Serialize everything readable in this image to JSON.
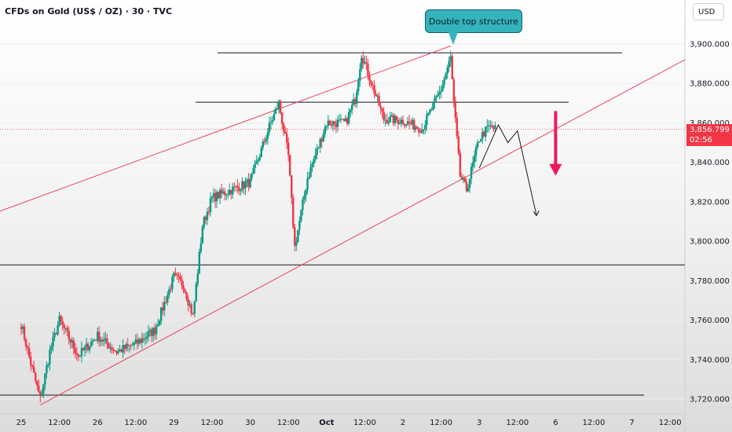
{
  "header": {
    "title": "CFDs on Gold (US$ / OZ) · 30 · TVC",
    "currency": "USD"
  },
  "annotation": {
    "callout_text": "Double top structure"
  },
  "price_label": {
    "value": "3,856.799",
    "countdown": "02:56",
    "color": "#f23645"
  },
  "colors": {
    "up": "#089981",
    "down": "#f23645",
    "channel": "#e8445a",
    "callout": "#35b3bd"
  },
  "chart_data": {
    "type": "candlestick",
    "title": "CFDs on Gold (US$ / OZ) · 30 · TVC",
    "y_axis": {
      "ticks": [
        3720,
        3740,
        3760,
        3780,
        3800,
        3820,
        3840,
        3860,
        3880,
        3900
      ],
      "tick_labels": [
        "3,720.000",
        "3,740.000",
        "3,760.000",
        "3,780.000",
        "3,800.000",
        "3,820.000",
        "3,840.000",
        "3,860.000",
        "3,880.000",
        "3,900.000"
      ],
      "range": [
        3713,
        3918
      ]
    },
    "x_axis": {
      "tick_labels": [
        "25",
        "12:00",
        "26",
        "12:00",
        "29",
        "12:00",
        "30",
        "12:00",
        "Oct",
        "12:00",
        "2",
        "12:00",
        "3",
        "12:00",
        "6",
        "12:00",
        "7",
        "12:00"
      ],
      "bold_labels": [
        "Oct"
      ]
    },
    "current_price": 3856.799,
    "path_anchors": [
      {
        "t": "25 00:00",
        "price": 3758
      },
      {
        "t": "25 03:00",
        "price": 3738
      },
      {
        "t": "25 06:00",
        "price": 3720
      },
      {
        "t": "25 09:00",
        "price": 3744
      },
      {
        "t": "25 12:00",
        "price": 3760
      },
      {
        "t": "25 18:00",
        "price": 3742
      },
      {
        "t": "26 00:00",
        "price": 3752
      },
      {
        "t": "26 06:00",
        "price": 3744
      },
      {
        "t": "26 12:00",
        "price": 3748
      },
      {
        "t": "26 18:00",
        "price": 3755
      },
      {
        "t": "29 00:00",
        "price": 3782
      },
      {
        "t": "29 03:00",
        "price": 3778
      },
      {
        "t": "29 06:00",
        "price": 3762
      },
      {
        "t": "29 09:00",
        "price": 3808
      },
      {
        "t": "29 12:00",
        "price": 3822
      },
      {
        "t": "29 18:00",
        "price": 3826
      },
      {
        "t": "30 00:00",
        "price": 3830
      },
      {
        "t": "30 06:00",
        "price": 3858
      },
      {
        "t": "30 09:00",
        "price": 3870
      },
      {
        "t": "30 12:00",
        "price": 3843
      },
      {
        "t": "30 14:00",
        "price": 3797
      },
      {
        "t": "30 18:00",
        "price": 3832
      },
      {
        "t": "Oct 00:00",
        "price": 3860
      },
      {
        "t": "Oct 06:00",
        "price": 3860
      },
      {
        "t": "Oct 09:00",
        "price": 3872
      },
      {
        "t": "Oct 11:00",
        "price": 3895
      },
      {
        "t": "Oct 15:00",
        "price": 3876
      },
      {
        "t": "Oct 18:00",
        "price": 3862
      },
      {
        "t": "2 00:00",
        "price": 3861
      },
      {
        "t": "2 06:00",
        "price": 3857
      },
      {
        "t": "2 09:00",
        "price": 3867
      },
      {
        "t": "2 12:00",
        "price": 3877
      },
      {
        "t": "2 15:00",
        "price": 3893
      },
      {
        "t": "2 16:00",
        "price": 3870
      },
      {
        "t": "2 18:00",
        "price": 3833
      },
      {
        "t": "2 20:00",
        "price": 3826
      },
      {
        "t": "3 00:00",
        "price": 3852
      },
      {
        "t": "3 03:00",
        "price": 3858
      },
      {
        "t": "3 05:00",
        "price": 3857
      }
    ],
    "horizontal_levels": [
      3895.5,
      3870.5,
      3788,
      3722
    ],
    "channel": {
      "upper": [
        {
          "t": "24 00:00",
          "price": 3805
        },
        {
          "t": "2 15:00",
          "price": 3899
        }
      ],
      "lower": [
        {
          "t": "25 06:00",
          "price": 3717
        },
        {
          "t": "7 12:00",
          "price": 3888
        }
      ]
    },
    "projection_path": [
      {
        "t": "3 00:00",
        "price": 3837
      },
      {
        "t": "3 06:00",
        "price": 3859
      },
      {
        "t": "3 09:00",
        "price": 3850
      },
      {
        "t": "3 12:00",
        "price": 3856
      },
      {
        "t": "3 18:00",
        "price": 3813
      }
    ],
    "down_arrow": {
      "t": "6 00:00",
      "from": 3866,
      "to": 3834
    }
  }
}
